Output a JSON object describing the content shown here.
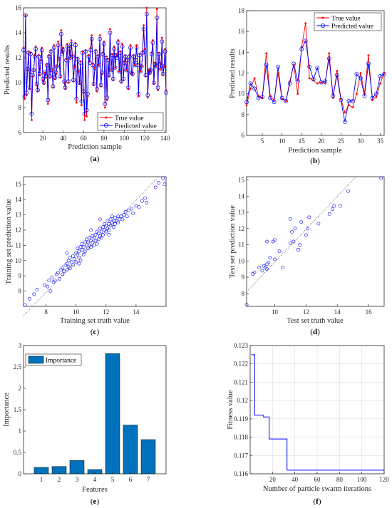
{
  "colors": {
    "true": "#ff0000",
    "pred": "#0000ff",
    "bar": "#0072bd",
    "line": "#0000ff",
    "axis": "#262626"
  },
  "chart_data": [
    {
      "type": "line",
      "caption": {
        "open": "(",
        "letter": "a",
        "close": ")"
      },
      "xlabel": "Prediction sample",
      "ylabel": "Predicted results",
      "xlim": [
        1,
        141
      ],
      "ylim": [
        6,
        16
      ],
      "xticks": [
        20,
        40,
        60,
        80,
        100,
        120,
        140
      ],
      "yticks": [
        6,
        8,
        10,
        12,
        14,
        16
      ],
      "legend": {
        "position": "bottom-right",
        "entries": [
          "True value",
          "Predicted value"
        ]
      },
      "series": [
        {
          "name": "True value",
          "color": "#ff0000",
          "marker": "dot",
          "values": [
            12.8,
            8.7,
            15.4,
            9.0,
            11.0,
            12.5,
            9.5,
            12.4,
            7.0,
            10.5,
            11.0,
            12.2,
            12.9,
            9.8,
            9.3,
            12.2,
            10.6,
            11.8,
            12.8,
            10.2,
            9.9,
            10.8,
            10.4,
            11.5,
            8.3,
            12.2,
            10.4,
            12.6,
            11.0,
            9.6,
            13.0,
            10.3,
            10.7,
            11.3,
            13.3,
            11.9,
            10.4,
            14.2,
            12.4,
            12.8,
            10.0,
            9.5,
            11.9,
            13.1,
            10.0,
            12.9,
            12.0,
            13.4,
            12.2,
            10.1,
            11.3,
            13.2,
            8.4,
            12.0,
            10.9,
            9.9,
            11.7,
            8.2,
            12.5,
            9.2,
            7.0,
            12.6,
            7.3,
            8.9,
            12.2,
            11.7,
            12.8,
            13.8,
            11.5,
            9.8,
            11.2,
            12.6,
            9.3,
            12.2,
            11.4,
            13.8,
            9.7,
            10.7,
            12.4,
            13.3,
            8.0,
            12.1,
            8.6,
            11.9,
            10.5,
            14.3,
            11.0,
            12.3,
            10.2,
            12.9,
            11.2,
            12.3,
            12.1,
            13.4,
            10.9,
            12.5,
            10.0,
            13.1,
            10.2,
            11.7,
            12.2,
            11.0,
            11.9,
            9.5,
            12.2,
            13.0,
            10.8,
            10.6,
            12.2,
            11.4,
            11.9,
            13.0,
            11.5,
            8.9,
            12.3,
            10.9,
            11.3,
            12.5,
            14.6,
            12.7,
            10.5,
            16.0,
            8.8,
            11.0,
            10.7,
            11.0,
            12.4,
            13.4,
            9.9,
            11.6,
            11.3,
            15.9,
            9.4,
            12.4,
            11.6,
            11.1,
            13.6,
            10.6,
            11.3,
            12.7,
            9.4
          ]
        },
        {
          "name": "Predicted value",
          "color": "#0000ff",
          "marker": "circle",
          "values": [
            12.6,
            8.9,
            15.4,
            9.2,
            11.1,
            12.4,
            9.6,
            12.3,
            7.5,
            10.6,
            11.0,
            12.1,
            12.7,
            9.9,
            9.4,
            12.1,
            10.7,
            11.7,
            12.6,
            10.3,
            10.0,
            10.8,
            10.5,
            11.4,
            8.6,
            12.1,
            10.5,
            12.5,
            11.0,
            9.7,
            12.8,
            10.4,
            10.8,
            11.3,
            13.0,
            11.9,
            10.5,
            13.9,
            12.3,
            12.6,
            10.1,
            9.6,
            11.8,
            12.9,
            10.1,
            12.7,
            12.0,
            13.1,
            12.1,
            10.2,
            11.3,
            13.0,
            8.7,
            11.9,
            10.9,
            10.0,
            11.6,
            8.5,
            12.4,
            9.3,
            7.5,
            12.5,
            7.8,
            9.1,
            12.1,
            11.6,
            12.6,
            13.5,
            11.4,
            9.9,
            11.2,
            12.5,
            9.5,
            12.1,
            11.4,
            13.5,
            9.8,
            10.8,
            12.3,
            13.1,
            8.3,
            12.0,
            8.8,
            11.8,
            10.6,
            14.0,
            11.0,
            12.2,
            10.3,
            12.7,
            11.2,
            12.2,
            12.0,
            13.2,
            10.9,
            12.4,
            10.1,
            12.9,
            10.3,
            11.6,
            12.1,
            11.0,
            11.8,
            9.6,
            12.1,
            12.8,
            10.8,
            10.7,
            12.1,
            11.4,
            11.8,
            12.8,
            11.4,
            9.1,
            12.2,
            10.9,
            11.3,
            12.4,
            14.3,
            12.5,
            10.6,
            15.5,
            9.0,
            11.0,
            10.8,
            11.0,
            12.3,
            13.2,
            10.0,
            11.5,
            11.3,
            15.2,
            9.6,
            12.3,
            11.5,
            11.1,
            13.3,
            10.7,
            11.3,
            12.5,
            9.2
          ]
        }
      ]
    },
    {
      "type": "line",
      "caption": {
        "open": "(",
        "letter": "b",
        "close": ")"
      },
      "xlabel": "Prediction sample",
      "ylabel": "Predicted results",
      "xlim": [
        1,
        36
      ],
      "ylim": [
        6,
        18
      ],
      "xticks": [
        5,
        10,
        15,
        20,
        25,
        30,
        35
      ],
      "yticks": [
        6,
        8,
        10,
        12,
        14,
        16,
        18
      ],
      "legend": {
        "position": "top-right",
        "entries": [
          "True value",
          "Predicted value"
        ]
      },
      "series": [
        {
          "name": "True value",
          "color": "#ff0000",
          "marker": "dot",
          "values": [
            8.9,
            10.5,
            11.5,
            9.8,
            9.6,
            13.9,
            9.8,
            9.4,
            12.0,
            9.5,
            9.3,
            11.2,
            12.8,
            10.0,
            14.5,
            16.8,
            11.5,
            11.3,
            11.0,
            11.1,
            11.0,
            13.9,
            9.6,
            12.2,
            9.5,
            8.2,
            8.9,
            8.7,
            10.0,
            12.0,
            10.0,
            13.7,
            9.4,
            9.7,
            11.0,
            12.0
          ]
        },
        {
          "name": "Predicted value",
          "color": "#0000ff",
          "marker": "circle",
          "values": [
            9.2,
            11.0,
            10.5,
            9.6,
            9.7,
            12.8,
            9.6,
            9.2,
            12.6,
            9.6,
            9.3,
            11.0,
            12.9,
            11.2,
            14.3,
            15.1,
            12.6,
            11.4,
            12.5,
            11.1,
            11.2,
            13.4,
            9.8,
            11.8,
            9.4,
            7.3,
            9.3,
            9.3,
            11.9,
            11.5,
            9.8,
            12.9,
            9.6,
            10.0,
            11.7,
            11.9
          ]
        }
      ]
    },
    {
      "type": "scatter",
      "caption": {
        "open": "(",
        "letter": "c",
        "close": ")"
      },
      "xlabel": "Training set truth value",
      "ylabel": "Training set prediction value",
      "xlim": [
        6.5,
        16
      ],
      "ylim": [
        7,
        15.5
      ],
      "xticks": [
        8,
        10,
        12,
        14
      ],
      "yticks": [
        8,
        9,
        10,
        11,
        12,
        13,
        14,
        15
      ],
      "points": [
        [
          6.6,
          7.1
        ],
        [
          6.9,
          7.5
        ],
        [
          7.2,
          7.8
        ],
        [
          7.4,
          8.1
        ],
        [
          7.9,
          8.4
        ],
        [
          8.1,
          8.3
        ],
        [
          8.2,
          8.7
        ],
        [
          8.4,
          8.9
        ],
        [
          8.5,
          8.6
        ],
        [
          8.6,
          8.7
        ],
        [
          8.7,
          9.1
        ],
        [
          8.8,
          9.2
        ],
        [
          8.9,
          8.8
        ],
        [
          9.0,
          9.4
        ],
        [
          9.1,
          9.5
        ],
        [
          9.1,
          9.1
        ],
        [
          9.2,
          9.3
        ],
        [
          9.3,
          9.7
        ],
        [
          9.4,
          9.4
        ],
        [
          9.4,
          9.8
        ],
        [
          9.5,
          10.0
        ],
        [
          9.5,
          9.6
        ],
        [
          9.6,
          9.5
        ],
        [
          9.6,
          10.2
        ],
        [
          9.7,
          9.9
        ],
        [
          9.8,
          10.3
        ],
        [
          9.8,
          9.7
        ],
        [
          9.9,
          10.1
        ],
        [
          10.0,
          10.5
        ],
        [
          10.0,
          9.9
        ],
        [
          10.1,
          10.4
        ],
        [
          10.1,
          10.8
        ],
        [
          10.2,
          10.2
        ],
        [
          10.2,
          10.6
        ],
        [
          10.3,
          10.9
        ],
        [
          10.3,
          10.0
        ],
        [
          10.4,
          10.7
        ],
        [
          10.4,
          11.1
        ],
        [
          10.5,
          10.4
        ],
        [
          10.5,
          10.9
        ],
        [
          10.6,
          11.2
        ],
        [
          10.6,
          10.6
        ],
        [
          10.7,
          11.0
        ],
        [
          10.7,
          11.4
        ],
        [
          10.8,
          10.8
        ],
        [
          10.8,
          11.2
        ],
        [
          10.9,
          11.5
        ],
        [
          10.9,
          11.0
        ],
        [
          11.0,
          11.3
        ],
        [
          11.0,
          10.9
        ],
        [
          11.1,
          11.6
        ],
        [
          11.1,
          11.2
        ],
        [
          11.2,
          11.0
        ],
        [
          11.2,
          11.5
        ],
        [
          11.3,
          11.3
        ],
        [
          11.3,
          11.7
        ],
        [
          11.4,
          11.1
        ],
        [
          11.4,
          11.9
        ],
        [
          11.5,
          11.4
        ],
        [
          11.5,
          11.8
        ],
        [
          11.6,
          11.6
        ],
        [
          11.6,
          12.1
        ],
        [
          11.7,
          11.5
        ],
        [
          11.7,
          11.9
        ],
        [
          11.8,
          12.2
        ],
        [
          11.8,
          11.7
        ],
        [
          11.9,
          12.0
        ],
        [
          11.9,
          12.4
        ],
        [
          12.0,
          11.9
        ],
        [
          12.0,
          12.3
        ],
        [
          12.1,
          12.6
        ],
        [
          12.1,
          12.1
        ],
        [
          12.2,
          12.4
        ],
        [
          12.2,
          12.0
        ],
        [
          12.3,
          12.7
        ],
        [
          12.3,
          12.3
        ],
        [
          12.4,
          12.5
        ],
        [
          12.4,
          12.9
        ],
        [
          12.5,
          12.2
        ],
        [
          12.5,
          12.6
        ],
        [
          12.6,
          12.8
        ],
        [
          12.6,
          12.4
        ],
        [
          12.7,
          12.6
        ],
        [
          12.8,
          12.9
        ],
        [
          12.8,
          12.5
        ],
        [
          12.9,
          12.7
        ],
        [
          13.0,
          12.9
        ],
        [
          13.1,
          12.7
        ],
        [
          13.2,
          13.0
        ],
        [
          13.3,
          13.2
        ],
        [
          13.4,
          12.9
        ],
        [
          13.5,
          13.3
        ],
        [
          13.7,
          13.4
        ],
        [
          13.8,
          13.1
        ],
        [
          14.0,
          13.6
        ],
        [
          14.2,
          13.5
        ],
        [
          14.4,
          13.9
        ],
        [
          14.6,
          14.1
        ],
        [
          14.7,
          13.8
        ],
        [
          15.3,
          14.8
        ],
        [
          15.5,
          15.1
        ],
        [
          15.8,
          15.4
        ],
        [
          15.9,
          15.0
        ],
        [
          11.6,
          12.7
        ],
        [
          11.0,
          12.0
        ],
        [
          10.2,
          9.8
        ],
        [
          9.4,
          10.5
        ],
        [
          12.2,
          11.7
        ],
        [
          8.3,
          8.0
        ]
      ]
    },
    {
      "type": "scatter",
      "caption": {
        "open": "(",
        "letter": "d",
        "close": ")"
      },
      "xlabel": "Test set truth value",
      "ylabel": "Test set prediction value",
      "xlim": [
        8.2,
        17
      ],
      "ylim": [
        7.2,
        15.2
      ],
      "xticks": [
        10,
        12,
        14,
        16
      ],
      "yticks": [
        8,
        9,
        10,
        11,
        12,
        13,
        14,
        15
      ],
      "points": [
        [
          8.2,
          7.3
        ],
        [
          8.6,
          9.2
        ],
        [
          8.7,
          9.3
        ],
        [
          9.0,
          9.6
        ],
        [
          9.3,
          9.7
        ],
        [
          9.4,
          9.6
        ],
        [
          9.5,
          9.8
        ],
        [
          9.5,
          9.5
        ],
        [
          9.6,
          9.9
        ],
        [
          9.7,
          10.2
        ],
        [
          9.5,
          11.2
        ],
        [
          9.9,
          11.2
        ],
        [
          10.0,
          11.3
        ],
        [
          10.5,
          9.6
        ],
        [
          10.3,
          10.6
        ],
        [
          11.0,
          11.1
        ],
        [
          11.1,
          11.8
        ],
        [
          11.2,
          11.2
        ],
        [
          11.0,
          12.6
        ],
        [
          11.3,
          12.0
        ],
        [
          11.5,
          10.7
        ],
        [
          11.6,
          11.0
        ],
        [
          11.7,
          12.4
        ],
        [
          12.0,
          11.6
        ],
        [
          12.1,
          12.0
        ],
        [
          12.2,
          12.7
        ],
        [
          12.8,
          12.3
        ],
        [
          13.5,
          12.9
        ],
        [
          13.7,
          13.2
        ],
        [
          13.8,
          13.4
        ],
        [
          14.2,
          13.4
        ],
        [
          14.7,
          14.3
        ],
        [
          16.8,
          15.1
        ],
        [
          10.0,
          10.1
        ],
        [
          9.2,
          9.4
        ]
      ]
    },
    {
      "type": "bar",
      "caption": {
        "open": "(",
        "letter": "e",
        "close": ")"
      },
      "xlabel": "Features",
      "ylabel": "Importance",
      "categories": [
        "1",
        "2",
        "3",
        "4",
        "5",
        "6",
        "7"
      ],
      "values": [
        0.15,
        0.17,
        0.31,
        0.1,
        2.81,
        1.14,
        0.8
      ],
      "ylim": [
        0,
        3
      ],
      "yticks": [
        "0",
        "0.5",
        "1",
        "1.5",
        "2",
        "2.5",
        "3"
      ],
      "legend": {
        "position": "top-left",
        "entries": [
          "Importance"
        ]
      },
      "series": [
        {
          "name": "Importance"
        }
      ]
    },
    {
      "type": "line",
      "caption": {
        "open": "(",
        "letter": "f",
        "close": ")"
      },
      "xlabel": "Number of particle swarm iterations",
      "ylabel": "Fitness value",
      "xlim": [
        0,
        120
      ],
      "ylim": [
        0.116,
        0.123
      ],
      "xticks": [
        20,
        40,
        60,
        80,
        100,
        120
      ],
      "yticks": [
        "0.116",
        "0.117",
        "0.118",
        "0.119",
        "0.12",
        "0.121",
        "0.122",
        "0.123"
      ],
      "grid": true,
      "steps": [
        [
          1,
          0.1225
        ],
        [
          4,
          0.1225
        ],
        [
          4,
          0.1192
        ],
        [
          12,
          0.1192
        ],
        [
          12,
          0.1191
        ],
        [
          17,
          0.1191
        ],
        [
          17,
          0.1179
        ],
        [
          33,
          0.1179
        ],
        [
          33,
          0.1162
        ],
        [
          120,
          0.1162
        ]
      ]
    }
  ]
}
